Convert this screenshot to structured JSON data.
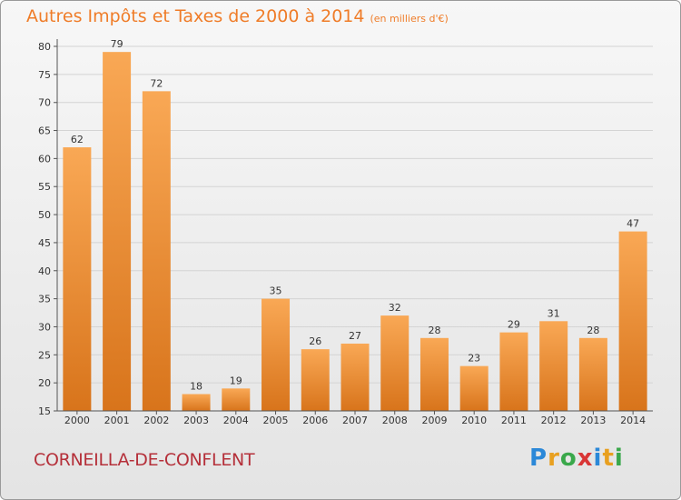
{
  "header": {
    "title": "Autres Impôts et Taxes de 2000 à 2014",
    "subtitle": "(en milliers d'€)"
  },
  "footer": {
    "town": "CORNEILLA-DE-CONFLENT",
    "logo": {
      "letters": [
        "P",
        "r",
        "o",
        "x",
        "i",
        "t",
        "i"
      ],
      "colors": [
        "#2b88d8",
        "#e8a020",
        "#3aa84b",
        "#d93636",
        "#2b88d8",
        "#e8a020",
        "#3aa84b"
      ]
    }
  },
  "colors": {
    "bar_top": "#f9a855",
    "bar_bottom": "#d8741b",
    "axis": "#555555",
    "grid": "#d4d4d4"
  },
  "chart_data": {
    "type": "bar",
    "title": "Autres Impôts et Taxes de 2000 à 2014",
    "subtitle": "(en milliers d'€)",
    "categories": [
      "2000",
      "2001",
      "2002",
      "2003",
      "2004",
      "2005",
      "2006",
      "2007",
      "2008",
      "2009",
      "2010",
      "2011",
      "2012",
      "2013",
      "2014"
    ],
    "values": [
      62,
      79,
      72,
      18,
      19,
      35,
      26,
      27,
      32,
      28,
      23,
      29,
      31,
      28,
      47
    ],
    "ylim": [
      15,
      80
    ],
    "yticks": [
      15,
      20,
      25,
      30,
      35,
      40,
      45,
      50,
      55,
      60,
      65,
      70,
      75,
      80
    ],
    "grid": true,
    "legend": "none"
  }
}
